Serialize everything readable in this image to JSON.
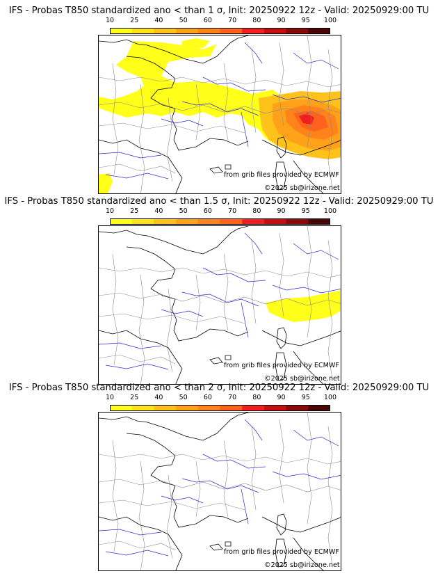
{
  "colorbar": {
    "ticks": [
      "10",
      "25",
      "40",
      "50",
      "60",
      "70",
      "80",
      "90",
      "95",
      "100"
    ],
    "colors": [
      "#ffff1a",
      "#ffe21a",
      "#ffc21a",
      "#ffa21a",
      "#ff821a",
      "#ff621a",
      "#ee2020",
      "#c21010",
      "#8a0a0a",
      "#4a0505"
    ]
  },
  "colors": {
    "land_outline": "#000000",
    "borders": "#8a8a8a",
    "rivers": "#2b2bd0"
  },
  "panels": [
    {
      "title": "IFS - Probas T850  standardized ano < than 1 σ, Init: 20250922 12z - Valid: 20250929:00 TU",
      "credit_source": "from grib files provided by ECMWF",
      "credit_copyright": "©2025 sb@irizone.net"
    },
    {
      "title": "IFS - Probas T850  standardized ano < than 1.5 σ, Init: 20250922 12z - Valid: 20250929:00 TU",
      "credit_source": "from grib files provided by ECMWF",
      "credit_copyright": "©2025 sb@irizone.net"
    },
    {
      "title": "IFS - Probas T850  standardized ano < than 2 σ, Init: 20250922 12z - Valid: 20250929:00 TU",
      "credit_source": "from grib files provided by ECMWF",
      "credit_copyright": "©2025 sb@irizone.net"
    }
  ]
}
